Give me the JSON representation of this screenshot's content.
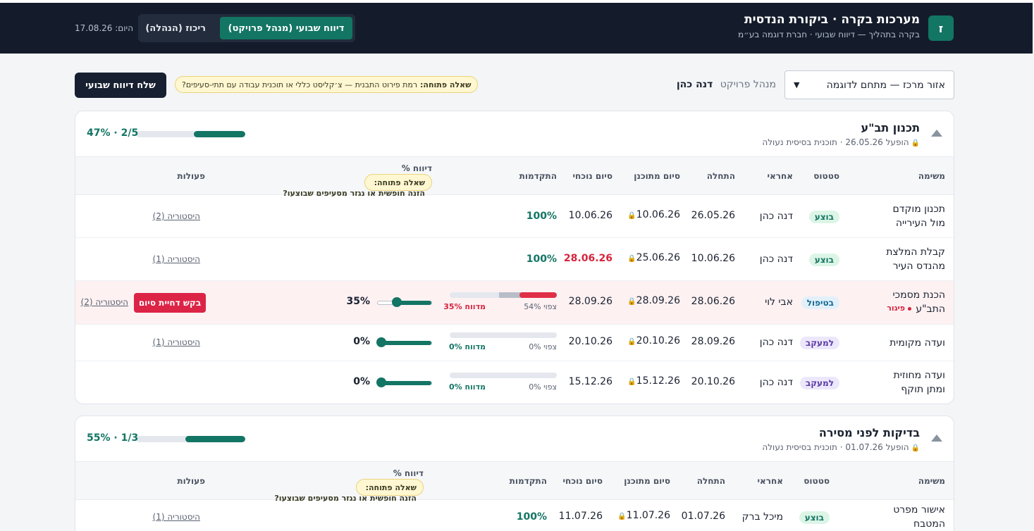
{
  "header": {
    "logo": "ז",
    "title": "מערכות בקרה · ביקורת הנדסית",
    "subtitle": "בקרה בתהליך — דיווח שבועי · חברת דוגמה בע״מ",
    "modes": [
      "דיווח שבועי (מנהל פרויקט)",
      "ריכוז (הנהלה)"
    ],
    "date_label": "היום:",
    "date_value": "17.08.26"
  },
  "toolbar": {
    "project": "אזור מרכז — מתחם לדוגמה",
    "pm_label": "מנהל פרויקט",
    "pm_name": "דנה כהן",
    "open_q_label": "שאלה פתוחה:",
    "open_q_text": "רמת פירוט התבנית — צ׳קליסט כללי או תוכנית עבודה עם תתי-סעיפים?",
    "send_button": "שלח דיווח שבועי"
  },
  "columns": {
    "task": "משימה",
    "status": "סטטוס",
    "owner": "אחראי",
    "start": "התחלה",
    "planned_end": "סיום מתוכנן",
    "current_end": "סיום נוכחי",
    "progress": "התקדמות",
    "report_pct": "דיווח %",
    "actions": "פעולות",
    "open_q_label": "שאלה פתוחה:",
    "open_q_text": "הזנה חופשית או נגזר מסעיפים שבוצעו?"
  },
  "sections": [
    {
      "title": "תכנון תב\"ע",
      "subtitle": "הופעל 26.05.26 · תוכנית בסיסית נעולה",
      "progress_pct": 47,
      "progress_text": "2/5 · 47%",
      "rows": [
        {
          "task": "תכנון מוקדם מול העירייה",
          "status": "בוצע",
          "status_kind": "done",
          "owner": "דנה כהן",
          "start": "26.05.26",
          "planned_end": "10.06.26",
          "current_end": "10.06.26",
          "late": false,
          "progress": "100%",
          "history": "היסטוריה (2)"
        },
        {
          "task": "קבלת המלצת מהנדס העיר",
          "status": "בוצע",
          "status_kind": "done",
          "owner": "דנה כהן",
          "start": "10.06.26",
          "planned_end": "25.06.26",
          "current_end": "28.06.26",
          "late": true,
          "progress": "100%",
          "history": "היסטוריה (1)"
        },
        {
          "task": "הכנת מסמכי התב\"ע",
          "delay": "פיגור",
          "status": "בטיפול",
          "status_kind": "prog",
          "owner": "אבי לוי",
          "start": "28.06.26",
          "planned_end": "28.09.26",
          "current_end": "28.09.26",
          "late": false,
          "expected": 54,
          "reported": 35,
          "expected_text": "צפוי 54%",
          "reported_text": "מדווח 35%",
          "slider": 35,
          "slider_text": "35%",
          "ext_button": "בקש דחיית סיום",
          "history": "היסטוריה (2)"
        },
        {
          "task": "ועדה מקומית",
          "status": "למעקב",
          "status_kind": "track",
          "owner": "דנה כהן",
          "start": "28.09.26",
          "planned_end": "20.10.26",
          "current_end": "20.10.26",
          "late": false,
          "expected": 0,
          "reported": 0,
          "expected_text": "צפוי 0%",
          "reported_text": "מדווח 0%",
          "slider": 0,
          "slider_text": "0%",
          "history": "היסטוריה (1)"
        },
        {
          "task": "ועדה מחוזית ומתן תוקף",
          "status": "למעקב",
          "status_kind": "track",
          "owner": "דנה כהן",
          "start": "20.10.26",
          "planned_end": "15.12.26",
          "current_end": "15.12.26",
          "late": false,
          "expected": 0,
          "reported": 0,
          "expected_text": "צפוי 0%",
          "reported_text": "מדווח 0%",
          "slider": 0,
          "slider_text": "0%"
        }
      ]
    },
    {
      "title": "בדיקות לפני מסירה",
      "subtitle": "הופעל 01.07.26 · תוכנית בסיסית נעולה",
      "progress_pct": 55,
      "progress_text": "1/3 · 55%",
      "rows": [
        {
          "task": "אישור מפרט המטבח",
          "status": "בוצע",
          "status_kind": "done",
          "owner": "מיכל ברק",
          "start": "01.07.26",
          "planned_end": "11.07.26",
          "current_end": "11.07.26",
          "late": false,
          "progress": "100%",
          "history": "היסטוריה (1)"
        }
      ]
    }
  ]
}
